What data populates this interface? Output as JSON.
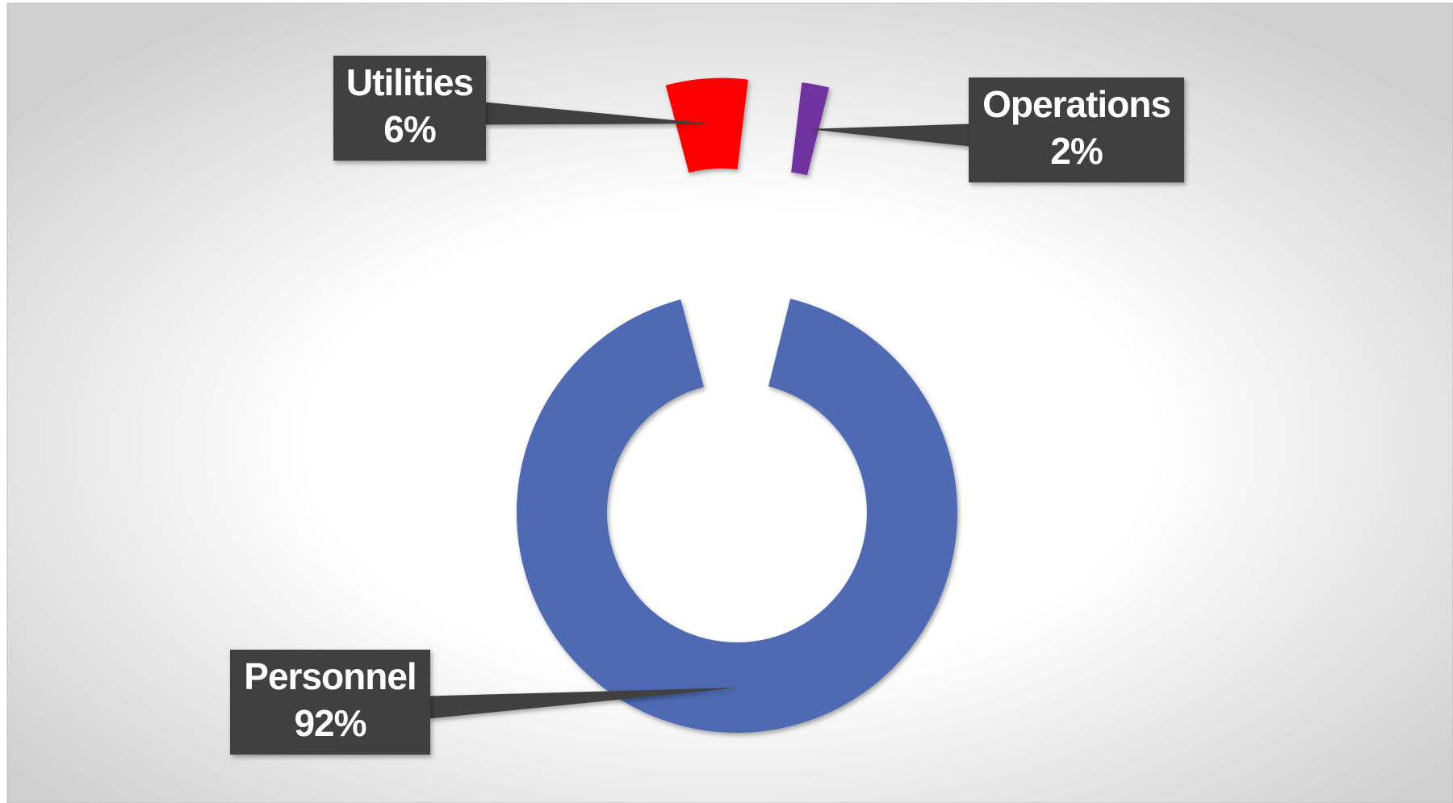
{
  "chart_data": {
    "type": "pie",
    "categories": [
      "Personnel",
      "Utilities",
      "Operations"
    ],
    "values": [
      92,
      6,
      2
    ],
    "value_labels": [
      "92%",
      "6%",
      "2%"
    ],
    "colors": [
      "#4e6ab2",
      "#ff0000",
      "#7030a0"
    ]
  }
}
